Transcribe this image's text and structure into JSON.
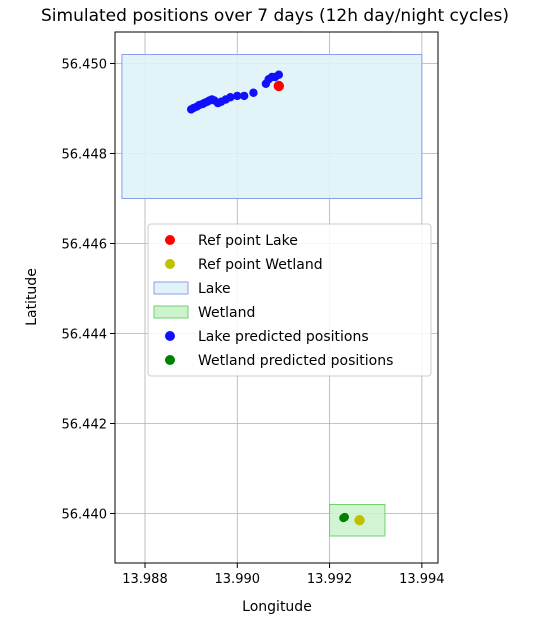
{
  "chart_data": {
    "type": "scatter",
    "title": "Simulated positions over 7 days (12h day/night cycles)",
    "xlabel": "Longitude",
    "ylabel": "Latitude",
    "xlim": [
      13.98735,
      13.99435
    ],
    "ylim": [
      56.4389,
      56.4507
    ],
    "xticks": [
      "13.988",
      "13.990",
      "13.992",
      "13.994"
    ],
    "xtick_values": [
      13.988,
      13.99,
      13.992,
      13.994
    ],
    "yticks": [
      "56.440",
      "56.442",
      "56.444",
      "56.446",
      "56.448",
      "56.450"
    ],
    "ytick_values": [
      56.44,
      56.442,
      56.444,
      56.446,
      56.448,
      56.45
    ],
    "grid": true,
    "legend_position": "center",
    "areas": [
      {
        "name": "Lake",
        "x0": 13.9875,
        "x1": 13.994,
        "y0": 56.447,
        "y1": 56.4502,
        "fill": "#e0f3f8",
        "edge": "#8c9cf0"
      },
      {
        "name": "Wetland",
        "x0": 13.992,
        "x1": 13.9932,
        "y0": 56.4395,
        "y1": 56.4402,
        "fill": "#cdf3cd",
        "edge": "#6fd26f"
      }
    ],
    "series": [
      {
        "name": "Lake predicted positions",
        "color": "#1010ff",
        "x": [
          13.989,
          13.98905,
          13.98912,
          13.98918,
          13.98925,
          13.9893,
          13.98935,
          13.9894,
          13.98945,
          13.9895,
          13.98958,
          13.98965,
          13.98975,
          13.98985,
          13.99,
          13.99015,
          13.99035,
          13.99062,
          13.99068,
          13.99075,
          13.99082,
          13.9909
        ],
        "y": [
          56.44898,
          56.44901,
          56.44904,
          56.44908,
          56.4491,
          56.44913,
          56.44915,
          56.44918,
          56.4492,
          56.44918,
          56.44912,
          56.44915,
          56.4492,
          56.44925,
          56.44928,
          56.44928,
          56.44935,
          56.44955,
          56.44965,
          56.4497,
          56.4497,
          56.44975
        ]
      },
      {
        "name": "Wetland predicted positions",
        "color": "#008000",
        "x": [
          13.9923,
          13.99233
        ],
        "y": [
          56.4399,
          56.43992
        ]
      }
    ],
    "reference_points": [
      {
        "name": "Ref point Lake",
        "color": "#ff0000",
        "x": 13.9909,
        "y": 56.4495
      },
      {
        "name": "Ref point Wetland",
        "color": "#c0c000",
        "x": 13.99265,
        "y": 56.43985
      }
    ],
    "legend": [
      {
        "label": "Ref point Lake",
        "kind": "point",
        "color": "#ff0000"
      },
      {
        "label": "Ref point Wetland",
        "kind": "point",
        "color": "#c0c000"
      },
      {
        "label": "Lake",
        "kind": "patch",
        "color": "#e0f3f8",
        "edge": "#8c9cf0"
      },
      {
        "label": "Wetland",
        "kind": "patch",
        "color": "#cdf3cd",
        "edge": "#6fd26f"
      },
      {
        "label": "Lake predicted positions",
        "kind": "point",
        "color": "#1010ff"
      },
      {
        "label": "Wetland predicted positions",
        "kind": "point",
        "color": "#008000"
      }
    ]
  }
}
